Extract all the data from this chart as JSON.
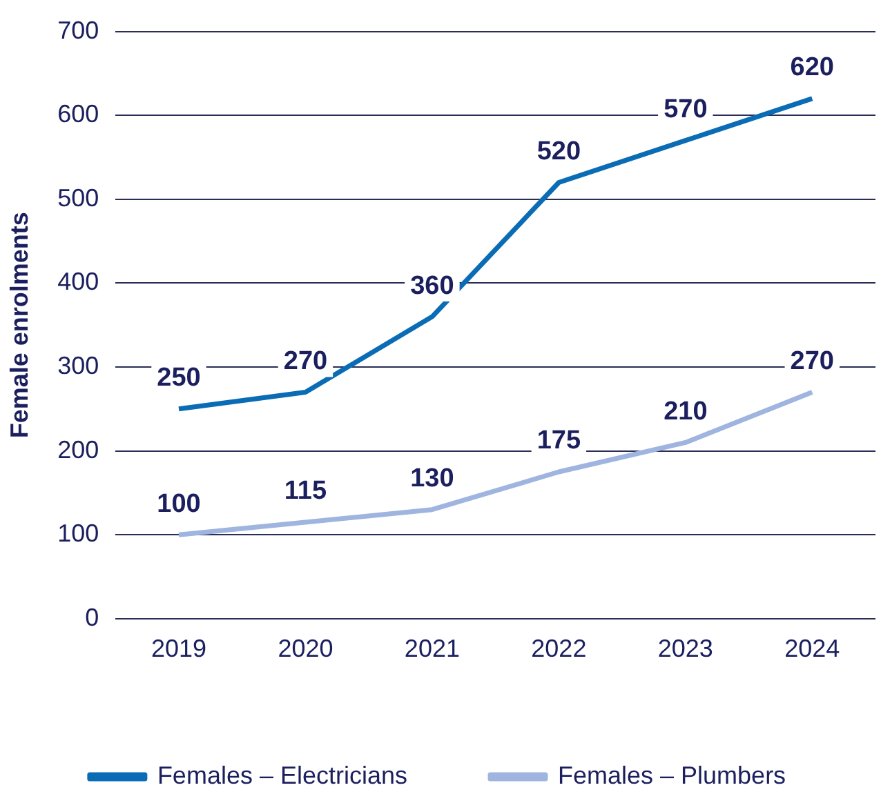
{
  "chart_data": {
    "type": "line",
    "ylabel": "Female enrolments",
    "categories": [
      "2019",
      "2020",
      "2021",
      "2022",
      "2023",
      "2024"
    ],
    "series": [
      {
        "name": "Females – Electricians",
        "color": "#0a6cb4",
        "values": [
          250,
          270,
          360,
          520,
          570,
          620
        ]
      },
      {
        "name": "Females – Plumbers",
        "color": "#9fb5df",
        "values": [
          100,
          115,
          130,
          175,
          210,
          270
        ]
      }
    ],
    "ylim": [
      0,
      700
    ],
    "yticks": [
      0,
      100,
      200,
      300,
      400,
      500,
      600,
      700
    ],
    "grid": "y",
    "legend": "bottom",
    "data_labels": true
  }
}
